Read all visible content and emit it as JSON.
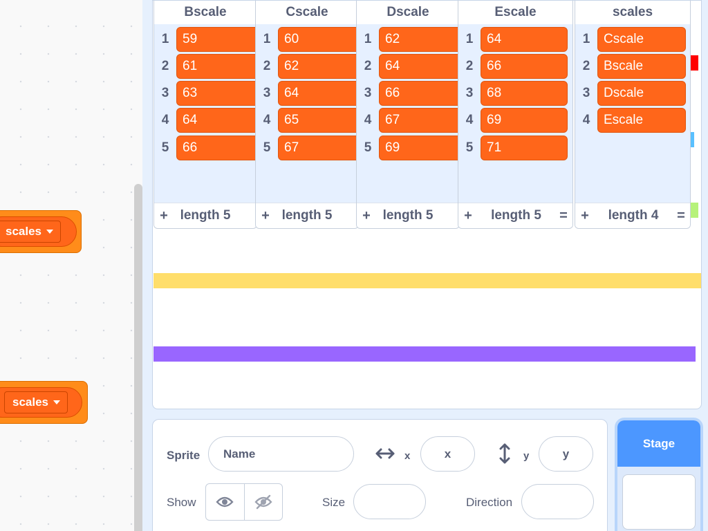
{
  "code_area": {
    "blocks": [
      {
        "dropdown_label": "scales"
      },
      {
        "dropdown_label": "scales"
      }
    ]
  },
  "stage": {
    "lists": [
      {
        "title": "Bscale",
        "items": [
          "59",
          "61",
          "63",
          "64",
          "66"
        ],
        "length_label": "length 5"
      },
      {
        "title": "Cscale",
        "items": [
          "60",
          "62",
          "64",
          "65",
          "67"
        ],
        "length_label": "length 5"
      },
      {
        "title": "Dscale",
        "items": [
          "62",
          "64",
          "66",
          "67",
          "69"
        ],
        "length_label": "length 5"
      },
      {
        "title": "Escale",
        "items": [
          "64",
          "66",
          "68",
          "69",
          "71"
        ],
        "length_label": "length 5"
      },
      {
        "title": "scales",
        "items": [
          "Cscale",
          "Bscale",
          "Dscale",
          "Escale"
        ],
        "length_label": "length 4"
      }
    ],
    "add_symbol": "+",
    "resize_symbol": "=",
    "stripe_colors": {
      "yellow": "#ffde6b",
      "purple": "#9966ff",
      "red": "#ff0000",
      "blue": "#59c0ff",
      "green": "#b6f27a"
    }
  },
  "sprite_info": {
    "sprite_label": "Sprite",
    "name_placeholder": "Name",
    "x_label": "x",
    "x_placeholder": "x",
    "y_label": "y",
    "y_placeholder": "y",
    "show_label": "Show",
    "size_label": "Size",
    "direction_label": "Direction"
  },
  "stage_selector": {
    "label": "Stage"
  }
}
